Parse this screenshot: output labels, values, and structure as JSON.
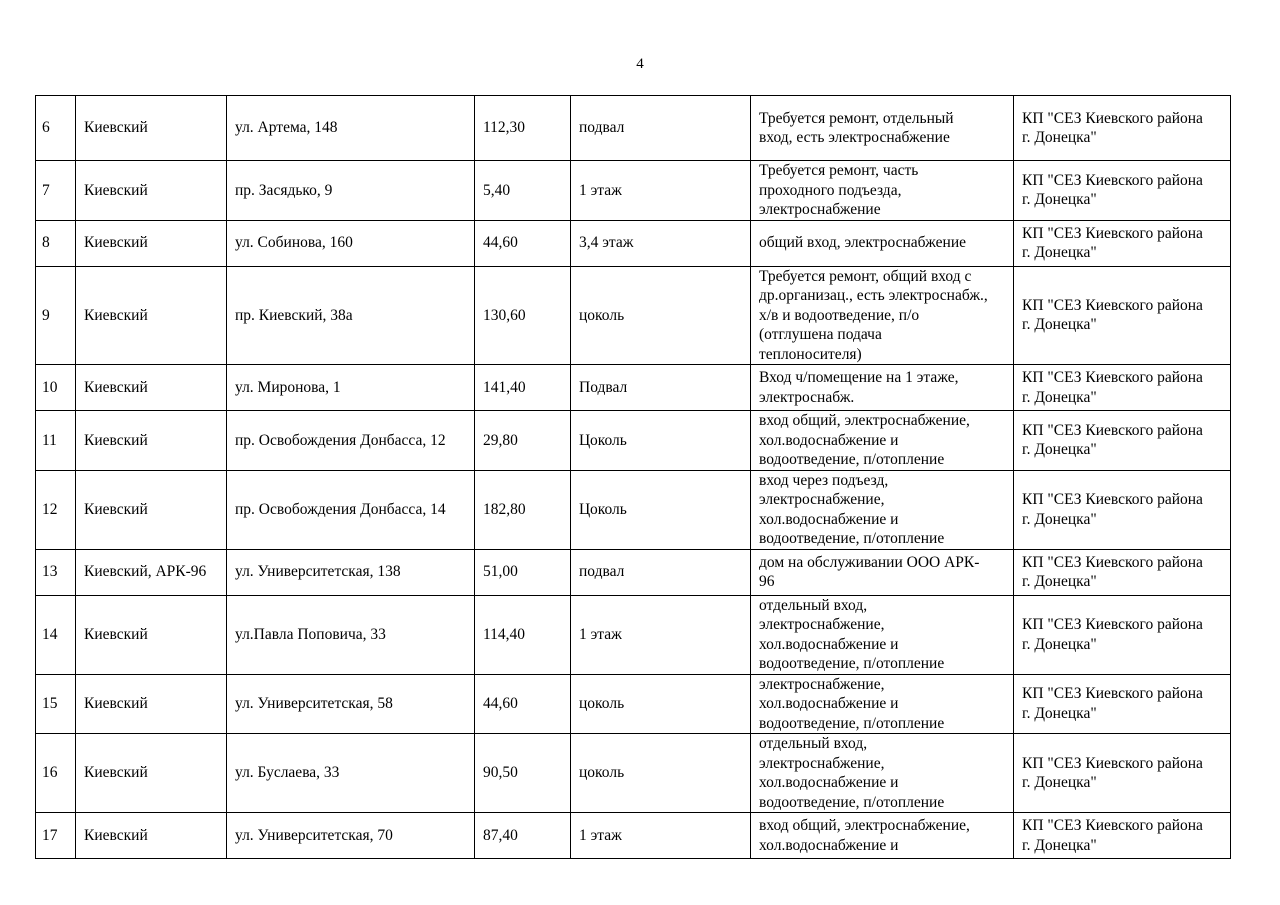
{
  "page_number": "4",
  "rows": [
    {
      "n": "6",
      "district": "Киевский",
      "address": "ул. Артема, 148",
      "area": "112,30",
      "location": "подвал",
      "description": "Требуется ремонт, отдельный\nвход, есть электроснабжение",
      "holder": "КП \"СЕЗ Киевского района\nг. Донецка\""
    },
    {
      "n": "7",
      "district": "Киевский",
      "address": "пр. Засядько, 9",
      "area": "5,40",
      "location": "1 этаж",
      "description": "Требуется ремонт, часть\nпроходного подъезда,\nэлектроснабжение",
      "holder": "КП \"СЕЗ Киевского района\nг. Донецка\""
    },
    {
      "n": "8",
      "district": "Киевский",
      "address": "ул. Собинова, 160",
      "area": "44,60",
      "location": "3,4 этаж",
      "description": "общий вход, электроснабжение",
      "holder": "КП \"СЕЗ Киевского района\nг. Донецка\""
    },
    {
      "n": "9",
      "district": "Киевский",
      "address": "пр. Киевский, 38а",
      "area": "130,60",
      "location": "цоколь",
      "description": "Требуется  ремонт, общий вход с\nдр.организац., есть электроснабж.,\nх/в и водоотведение, п/о\n(отглушена подача\nтеплоносителя)",
      "holder": "КП \"СЕЗ Киевского района\nг. Донецка\""
    },
    {
      "n": "10",
      "district": "Киевский",
      "address": "ул. Миронова, 1",
      "area": "141,40",
      "location": "Подвал",
      "description": "Вход ч/помещение на 1 этаже,\nэлектроснабж.",
      "holder": "КП \"СЕЗ Киевского района\nг. Донецка\""
    },
    {
      "n": "11",
      "district": "Киевский",
      "address": "пр. Освобождения Донбасса, 12",
      "area": "29,80",
      "location": "Цоколь",
      "description": "вход общий, электроснабжение,\nхол.водоснабжение и\nводоотведение, п/отопление",
      "holder": "КП \"СЕЗ Киевского района\nг. Донецка\""
    },
    {
      "n": "12",
      "district": "Киевский",
      "address": "пр. Освобождения Донбасса, 14",
      "area": "182,80",
      "location": "Цоколь",
      "description": "вход через подъезд,\nэлектроснабжение,\nхол.водоснабжение и\nводоотведение, п/отопление",
      "holder": "КП \"СЕЗ Киевского района\nг. Донецка\""
    },
    {
      "n": "13",
      "district": "Киевский, АРК-96",
      "address": "ул. Университетская, 138",
      "area": "51,00",
      "location": "подвал",
      "description": "дом на обслуживании ООО АРК-\n96",
      "holder": "КП \"СЕЗ Киевского района\nг. Донецка\""
    },
    {
      "n": "14",
      "district": "Киевский",
      "address": "ул.Павла Поповича, 33",
      "area": "114,40",
      "location": "1 этаж",
      "description": " отдельный вход,\nэлектроснабжение,\nхол.водоснабжение и\nводоотведение, п/отопление",
      "holder": "КП \"СЕЗ Киевского района\nг. Донецка\""
    },
    {
      "n": "15",
      "district": "Киевский",
      "address": "ул. Университетская, 58",
      "area": "44,60",
      "location": "цоколь",
      "description": "электроснабжение,\nхол.водоснабжение и\nводоотведение, п/отопление",
      "holder": "КП \"СЕЗ Киевского района\nг. Донецка\""
    },
    {
      "n": "16",
      "district": "Киевский",
      "address": "ул. Буслаева, 33",
      "area": "90,50",
      "location": "цоколь",
      "description": " отдельный вход,\nэлектроснабжение,\nхол.водоснабжение и\nводоотведение, п/отопление",
      "holder": "КП \"СЕЗ Киевского района\nг. Донецка\""
    },
    {
      "n": "17",
      "district": "Киевский",
      "address": "ул. Университетская, 70",
      "area": "87,40",
      "location": "1 этаж",
      "description": "вход общий, электроснабжение,\nхол.водоснабжение и",
      "holder": "КП \"СЕЗ Киевского района\nг. Донецка\""
    }
  ]
}
